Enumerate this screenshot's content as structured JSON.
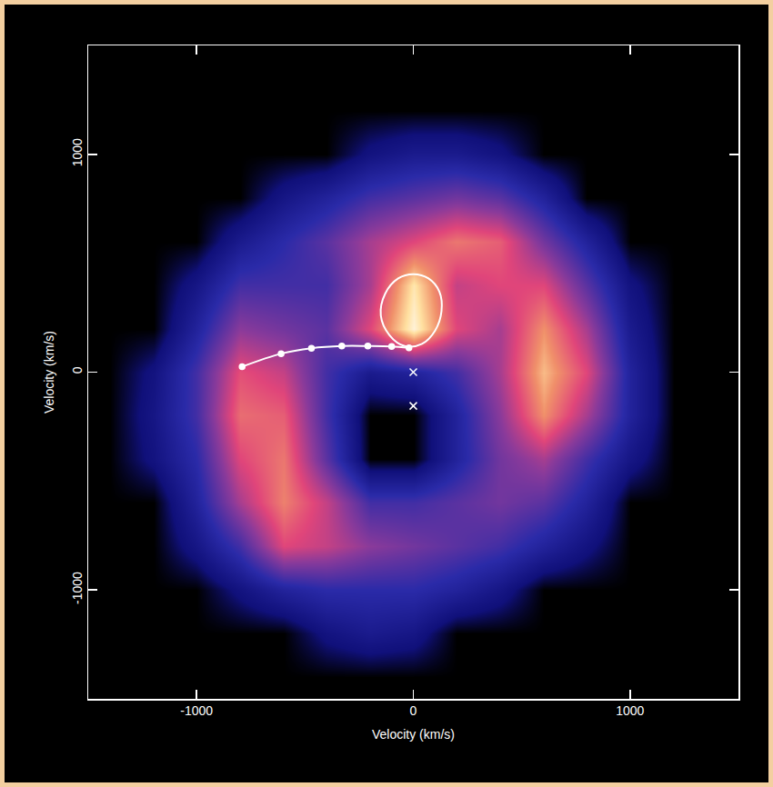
{
  "chart_data": {
    "type": "heatmap",
    "xlabel": "Velocity (km/s)",
    "ylabel": "Velocity (km/s)",
    "xlim": [
      -1500,
      1500
    ],
    "ylim": [
      -1500,
      1500
    ],
    "xticks": [
      -1000,
      0,
      1000
    ],
    "yticks": [
      -1000,
      0,
      1000
    ],
    "grid": false,
    "x": [
      -1400,
      -1200,
      -1000,
      -800,
      -600,
      -400,
      -200,
      0,
      200,
      400,
      600,
      800,
      1000,
      1200,
      1400
    ],
    "y": [
      -1400,
      -1200,
      -1000,
      -800,
      -600,
      -400,
      -200,
      0,
      200,
      400,
      600,
      800,
      1000,
      1200,
      1400
    ],
    "z": [
      [
        0,
        0,
        0,
        0,
        0,
        0,
        0,
        0,
        0,
        0,
        0,
        0,
        0,
        0,
        0
      ],
      [
        0,
        0,
        0,
        0,
        0,
        0.1,
        0.15,
        0.12,
        0,
        0,
        0,
        0,
        0,
        0,
        0
      ],
      [
        0,
        0,
        0,
        0.1,
        0.2,
        0.25,
        0.25,
        0.25,
        0.2,
        0.12,
        0,
        0,
        0,
        0,
        0
      ],
      [
        0,
        0,
        0.12,
        0.3,
        0.6,
        0.55,
        0.45,
        0.4,
        0.35,
        0.3,
        0.2,
        0.1,
        0,
        0,
        0
      ],
      [
        0,
        0,
        0.2,
        0.5,
        0.72,
        0.55,
        0.3,
        0.3,
        0.35,
        0.4,
        0.35,
        0.2,
        0,
        0,
        0
      ],
      [
        0,
        0.1,
        0.25,
        0.6,
        0.7,
        0.35,
        0,
        0,
        0.2,
        0.4,
        0.5,
        0.3,
        0.12,
        0,
        0
      ],
      [
        0,
        0.12,
        0.3,
        0.68,
        0.65,
        0.3,
        0,
        0,
        0.2,
        0.45,
        0.75,
        0.5,
        0.2,
        0,
        0
      ],
      [
        0,
        0.1,
        0.3,
        0.62,
        0.55,
        0.3,
        0.15,
        0.2,
        0.3,
        0.5,
        0.82,
        0.6,
        0.2,
        0,
        0
      ],
      [
        0,
        0,
        0.2,
        0.45,
        0.4,
        0.35,
        0.6,
        0.95,
        0.6,
        0.5,
        0.75,
        0.5,
        0.15,
        0,
        0
      ],
      [
        0,
        0,
        0.12,
        0.3,
        0.3,
        0.3,
        0.5,
        0.9,
        0.55,
        0.6,
        0.6,
        0.35,
        0.1,
        0,
        0
      ],
      [
        0,
        0,
        0,
        0.15,
        0.25,
        0.35,
        0.5,
        0.6,
        0.7,
        0.65,
        0.4,
        0.2,
        0,
        0,
        0
      ],
      [
        0,
        0,
        0,
        0,
        0.12,
        0.2,
        0.3,
        0.35,
        0.4,
        0.35,
        0.2,
        0,
        0,
        0,
        0
      ],
      [
        0,
        0,
        0,
        0,
        0,
        0,
        0.1,
        0.15,
        0.15,
        0.1,
        0,
        0,
        0,
        0,
        0
      ],
      [
        0,
        0,
        0,
        0,
        0,
        0,
        0,
        0,
        0,
        0,
        0,
        0,
        0,
        0,
        0
      ],
      [
        0,
        0,
        0,
        0,
        0,
        0,
        0,
        0,
        0,
        0,
        0,
        0,
        0,
        0,
        0
      ]
    ],
    "zlim": [
      0,
      1
    ],
    "series": [
      {
        "type": "line",
        "marker": "circle",
        "color": "#ffffff",
        "x": [
          -790,
          -610,
          -470,
          -330,
          -210,
          -100,
          -20
        ],
        "values": [
          25,
          85,
          110,
          120,
          120,
          118,
          112
        ]
      },
      {
        "type": "line",
        "marker": "none",
        "color": "#ffffff",
        "x": [
          -150,
          -130,
          -70,
          0,
          70,
          120,
          130,
          100,
          40,
          -40,
          -110,
          -150
        ],
        "values": [
          260,
          360,
          430,
          450,
          430,
          370,
          280,
          190,
          130,
          120,
          170,
          260
        ]
      },
      {
        "type": "scatter",
        "marker": "x",
        "color": "#ffffff",
        "x": [
          0,
          0
        ],
        "values": [
          0,
          -155
        ]
      }
    ]
  }
}
